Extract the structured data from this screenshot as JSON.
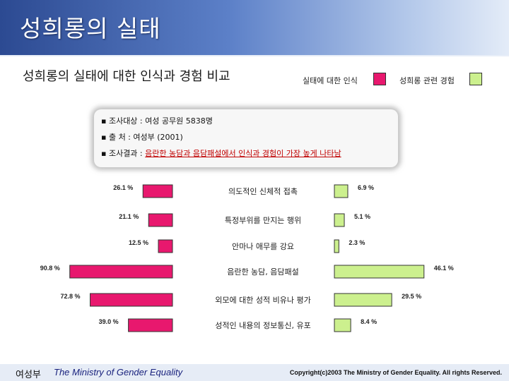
{
  "header": {
    "title": "성희롱의 실태"
  },
  "subtitle": "성희롱의 실태에 대한 인식과 경험 비교",
  "legend": [
    {
      "label": "실태에 대한 인식",
      "color": "#e8186e"
    },
    {
      "label": "성희롱 관련 경험",
      "color": "#ccf08e"
    }
  ],
  "info": {
    "line1": "▪ 조사대상 : 여성 공무원 5838명",
    "line2": "▪ 출       처 : 여성부 (2001)",
    "line3_prefix": "▪ 조사결과 : ",
    "line3_highlight": "음란한 농담과 음담패설에서 인식과 경험이 가장 높게 나타남"
  },
  "chart_data": {
    "type": "bar",
    "categories": [
      "의도적인 신체적 접촉",
      "특정부위를 만지는 행위",
      "안마나 애무를 강요",
      "음란한 농담, 음담패설",
      "외모에 대한 성적 비유나 평가",
      "성적인 내용의 정보통신, 유포"
    ],
    "series": [
      {
        "name": "실태에 대한 인식",
        "values": [
          26.1,
          21.1,
          12.5,
          90.8,
          72.8,
          39.0
        ],
        "labels": [
          "26.1 %",
          "21.1 %",
          "12.5 %",
          "90.8 %",
          "72.8 %",
          "39.0 %"
        ]
      },
      {
        "name": "성희롱 관련 경험",
        "values": [
          6.9,
          5.1,
          2.3,
          46.1,
          29.5,
          8.4
        ],
        "labels": [
          "6.9 %",
          "5.1 %",
          "2.3 %",
          "46.1 %",
          "29.5 %",
          "8.4 %"
        ]
      }
    ],
    "title": "",
    "xlabel": "",
    "ylabel": ""
  },
  "footer": {
    "org": "여성부",
    "org_en": "The Ministry of Gender Equality",
    "copyright": "Copyright(c)2003 The Ministry of Gender Equality. All rights Reserved."
  }
}
